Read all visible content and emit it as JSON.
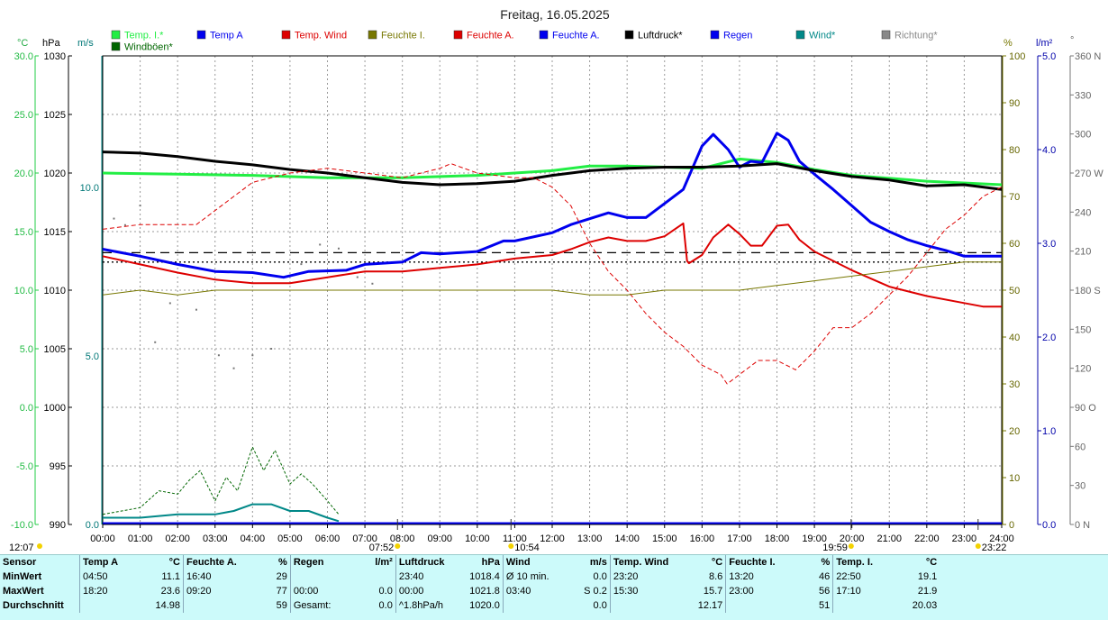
{
  "title": "Freitag, 16.05.2025",
  "axis_units": {
    "temp": "°C",
    "pressure": "hPa",
    "wind": "m/s",
    "humidity": "%",
    "rain": "l/m²",
    "direction": "°"
  },
  "legend": [
    {
      "label": "Temp. I.*",
      "color": "#22ee44"
    },
    {
      "label": "Temp A",
      "color": "#0000ee"
    },
    {
      "label": "Temp. Wind",
      "color": "#dd0000"
    },
    {
      "label": "Feuchte I.",
      "color": "#777700"
    },
    {
      "label": "Feuchte A.",
      "color": "#dd0000"
    },
    {
      "label": "Feuchte A.",
      "color": "#0000ee"
    },
    {
      "label": "Luftdruck*",
      "color": "#000000"
    },
    {
      "label": "Regen",
      "color": "#0000ee"
    },
    {
      "label": "Wind*",
      "color": "#008888"
    },
    {
      "label": "Richtung*",
      "color": "#888888"
    },
    {
      "label": "Windböen*",
      "color": "#006600"
    }
  ],
  "sun_labels": [
    {
      "text": "12:07",
      "x_hour": -2.4
    },
    {
      "text": "07:52",
      "x_hour": 7.87
    },
    {
      "text": "10:54",
      "x_hour": 10.9
    },
    {
      "text": "19:59",
      "x_hour": 19.98
    },
    {
      "text": "23:22",
      "x_hour": 23.37
    }
  ],
  "chart_data": {
    "type": "line",
    "x_ticks": [
      "00:00",
      "01:00",
      "02:00",
      "03:00",
      "04:00",
      "05:00",
      "06:00",
      "07:00",
      "08:00",
      "09:00",
      "10:00",
      "11:00",
      "12:00",
      "13:00",
      "14:00",
      "15:00",
      "16:00",
      "17:00",
      "18:00",
      "19:00",
      "20:00",
      "21:00",
      "22:00",
      "23:00",
      "24:00"
    ],
    "xlim": [
      0,
      24
    ],
    "temp_axis": {
      "ylim": [
        -10,
        30
      ],
      "ticks": [
        "30.0",
        "25.0",
        "20.0",
        "15.0",
        "10.0",
        "5.0",
        "0.0",
        "-5.0",
        "-10.0"
      ]
    },
    "pressure_axis": {
      "ylim": [
        990,
        1030
      ],
      "ticks": [
        "1030",
        "1025",
        "1020",
        "1015",
        "1010",
        "1005",
        "1000",
        "995",
        "990"
      ]
    },
    "wind_axis": {
      "ticks": [
        "10.0",
        "5.0",
        "0.0"
      ]
    },
    "humidity_axis": {
      "ylim": [
        0,
        100
      ],
      "ticks": [
        "100",
        "90",
        "80",
        "70",
        "60",
        "50",
        "40",
        "30",
        "20",
        "10",
        "0"
      ]
    },
    "rain_axis": {
      "ylim": [
        0,
        5
      ],
      "ticks": [
        "5.0",
        "4.0",
        "3.0",
        "2.0",
        "1.0",
        "0.0"
      ]
    },
    "direction_axis": {
      "ticks": [
        "360 N",
        "330",
        "300",
        "270 W",
        "240",
        "210",
        "180 S",
        "150",
        "120",
        "90 O",
        "60",
        "30",
        "0 N"
      ]
    },
    "series": [
      {
        "name": "Temp. I.*",
        "axis": "temp",
        "color": "#22ee44",
        "width": 3,
        "x": [
          0,
          2,
          4,
          6,
          8,
          10,
          12,
          13,
          14,
          16,
          17,
          18,
          19,
          20,
          22,
          24
        ],
        "y": [
          20.0,
          19.9,
          19.8,
          19.6,
          19.6,
          19.8,
          20.2,
          20.6,
          20.6,
          20.4,
          21.2,
          20.9,
          20.3,
          19.8,
          19.3,
          19.0
        ]
      },
      {
        "name": "Temp A",
        "axis": "temp",
        "color": "#0000ee",
        "width": 3,
        "x": [
          0,
          1,
          2,
          3,
          4,
          4.83,
          5.5,
          6.5,
          7,
          8,
          8.5,
          9,
          10,
          10.7,
          11,
          12,
          12.5,
          13,
          13.5,
          14,
          14.5,
          15,
          15.5,
          16,
          16.3,
          16.7,
          17,
          17.3,
          17.6,
          18,
          18.3,
          18.6,
          19,
          19.5,
          20,
          20.5,
          21,
          21.5,
          22,
          22.5,
          23,
          23.3,
          24
        ],
        "y": [
          13.5,
          12.9,
          12.2,
          11.6,
          11.5,
          11.1,
          11.6,
          11.7,
          12.2,
          12.4,
          13.2,
          13.1,
          13.3,
          14.2,
          14.2,
          14.9,
          15.6,
          16.1,
          16.6,
          16.2,
          16.2,
          17.4,
          18.6,
          22.3,
          23.3,
          22.0,
          20.5,
          21.0,
          20.9,
          23.4,
          22.8,
          21.0,
          19.9,
          18.6,
          17.2,
          15.8,
          15.0,
          14.3,
          13.8,
          13.4,
          12.9,
          12.9,
          12.9
        ]
      },
      {
        "name": "Temp. Wind",
        "axis": "temp",
        "color": "#dd0000",
        "width": 2,
        "x": [
          0,
          1,
          2,
          3,
          4,
          5,
          6,
          7,
          8,
          9,
          10,
          11,
          12,
          12.5,
          13,
          13.5,
          14,
          14.5,
          15,
          15.5,
          15.6,
          15.65,
          16,
          16.3,
          16.7,
          17,
          17.3,
          17.6,
          18,
          18.3,
          18.6,
          19,
          20,
          21,
          22,
          23,
          23.5,
          24
        ],
        "y": [
          12.9,
          12.2,
          11.5,
          10.9,
          10.6,
          10.6,
          11.1,
          11.6,
          11.6,
          11.9,
          12.2,
          12.7,
          13.0,
          13.5,
          14.1,
          14.5,
          14.2,
          14.2,
          14.6,
          15.7,
          12.5,
          12.3,
          13.0,
          14.5,
          15.6,
          14.8,
          13.8,
          13.8,
          15.5,
          15.6,
          14.3,
          13.3,
          11.7,
          10.3,
          9.5,
          8.9,
          8.6,
          8.6
        ]
      },
      {
        "name": "Luftdruck*",
        "axis": "pressure",
        "color": "#000000",
        "width": 3,
        "x": [
          0,
          1,
          2,
          3,
          4,
          5,
          6,
          7,
          8,
          9,
          10,
          11,
          12,
          13,
          14,
          15,
          16,
          17,
          18,
          19,
          20,
          21,
          22,
          23,
          24
        ],
        "y": [
          1021.8,
          1021.7,
          1021.4,
          1021.0,
          1020.7,
          1020.3,
          1020.0,
          1019.6,
          1019.2,
          1019.0,
          1019.1,
          1019.3,
          1019.8,
          1020.2,
          1020.4,
          1020.5,
          1020.5,
          1020.6,
          1020.8,
          1020.2,
          1019.7,
          1019.4,
          1018.9,
          1019.0,
          1018.6
        ]
      },
      {
        "name": "Feuchte A.",
        "axis": "humidity",
        "color": "#dd0000",
        "width": 1,
        "dash": "5,3",
        "x": [
          0,
          1,
          2,
          2.5,
          3,
          3.5,
          4,
          5,
          6,
          7,
          8,
          9,
          9.3,
          10,
          11,
          11.5,
          12,
          12.5,
          13,
          13.5,
          14,
          14.5,
          15,
          15.5,
          16,
          16.5,
          16.67,
          17,
          17.5,
          18,
          18.5,
          19,
          19.5,
          20,
          20.5,
          21,
          21.5,
          22,
          22.5,
          23,
          23.5,
          24
        ],
        "y": [
          63,
          64,
          64,
          64,
          67,
          70,
          73,
          75,
          76,
          75,
          74,
          76,
          77,
          75,
          74,
          74,
          72,
          68,
          60,
          54,
          50,
          45,
          41,
          38,
          34,
          32,
          30,
          32,
          35,
          35,
          33,
          37,
          42,
          42,
          45,
          49,
          53,
          58,
          63,
          66,
          70,
          72
        ]
      },
      {
        "name": "Feuchte I.",
        "axis": "humidity",
        "color": "#777700",
        "width": 1,
        "x": [
          0,
          1,
          2,
          3,
          4,
          5,
          6,
          7,
          8,
          9,
          10,
          11,
          12,
          13,
          14,
          15,
          16,
          17,
          18,
          19,
          20,
          21,
          22,
          23,
          24
        ],
        "y": [
          49,
          50,
          49,
          50,
          50,
          50,
          50,
          50,
          50,
          50,
          50,
          50,
          50,
          49,
          49,
          50,
          50,
          50,
          51,
          52,
          53,
          54,
          55,
          56,
          56
        ]
      },
      {
        "name": "Wind*",
        "axis": "wind",
        "color": "#008888",
        "width": 2,
        "x": [
          0,
          1,
          2,
          3,
          3.5,
          4,
          4.5,
          5,
          5.5,
          6,
          6.3
        ],
        "y": [
          0.2,
          0.2,
          0.3,
          0.3,
          0.4,
          0.6,
          0.6,
          0.4,
          0.4,
          0.2,
          0.1
        ]
      },
      {
        "name": "Windböen*",
        "axis": "wind",
        "color": "#006600",
        "width": 1,
        "dash": "3,2",
        "x": [
          0,
          1,
          1.5,
          2,
          2.3,
          2.6,
          3,
          3.3,
          3.6,
          4,
          4.3,
          4.6,
          5,
          5.3,
          5.6,
          6,
          6.3
        ],
        "y": [
          0.3,
          0.5,
          1.0,
          0.9,
          1.3,
          1.6,
          0.7,
          1.4,
          1.0,
          2.3,
          1.6,
          2.2,
          1.2,
          1.5,
          1.2,
          0.7,
          0.3
        ]
      }
    ],
    "reference_lines": [
      {
        "axis": "humidity",
        "y": 58,
        "dash": "10,6"
      },
      {
        "axis": "humidity",
        "y": 56,
        "dash": "2,3"
      }
    ],
    "direction_points": {
      "axis": "direction",
      "x": [
        0.3,
        0.6,
        1.0,
        1.4,
        1.8,
        2.5,
        3.1,
        3.5,
        4.0,
        4.5,
        5.3,
        5.8,
        6.3,
        6.8,
        7.2
      ],
      "y": [
        235,
        230,
        245,
        140,
        170,
        165,
        130,
        120,
        130,
        135,
        200,
        215,
        212,
        190,
        185
      ]
    }
  },
  "stats": {
    "headers": [
      "Sensor",
      "Temp A",
      "°C",
      "Feuchte A.",
      "%",
      "Regen",
      "l/m²",
      "Luftdruck",
      "hPa",
      "Wind",
      "m/s",
      "Temp. Wind",
      "°C",
      "Feuchte I.",
      "%",
      "Temp. I.",
      "°C"
    ],
    "rows": [
      [
        "MinWert",
        "04:50",
        "11.1",
        "16:40",
        "29",
        "",
        "",
        "23:40",
        "1018.4",
        "Ø 10 min.",
        "0.0",
        "23:20",
        "8.6",
        "13:20",
        "46",
        "22:50",
        "19.1"
      ],
      [
        "MaxWert",
        "18:20",
        "23.6",
        "09:20",
        "77",
        "00:00",
        "0.0",
        "00:00",
        "1021.8",
        "03:40",
        "S 0.2",
        "15:30",
        "15.7",
        "23:00",
        "56",
        "17:10",
        "21.9"
      ],
      [
        "Durchschnitt",
        "",
        "14.98",
        "",
        "59",
        "Gesamt:",
        "0.0",
        "^1.8hPa/h",
        "1020.0",
        "",
        "0.0",
        "",
        "12.17",
        "",
        "51",
        "",
        "20.03"
      ]
    ]
  }
}
